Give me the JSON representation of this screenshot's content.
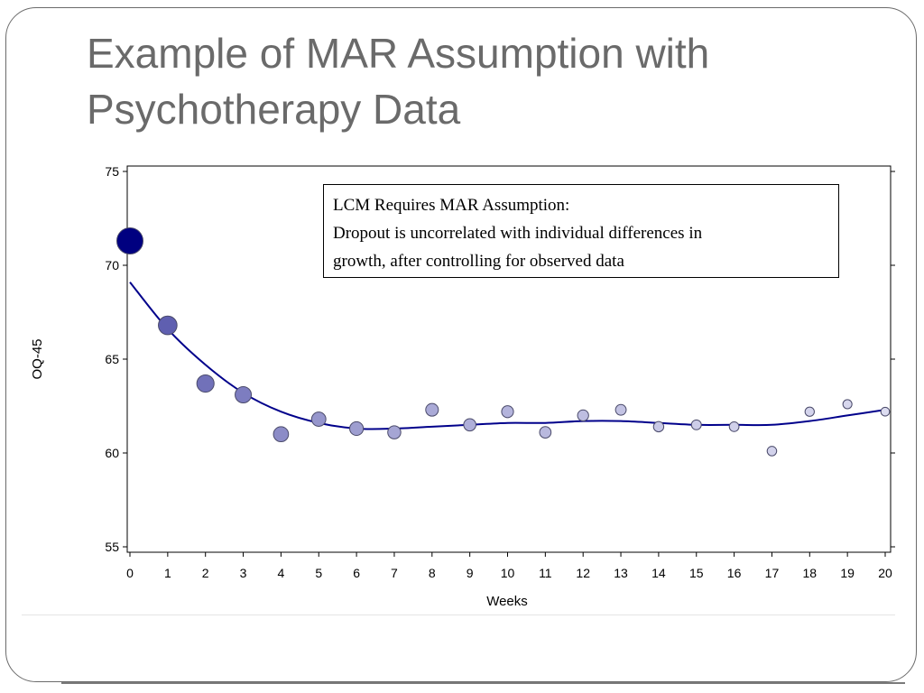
{
  "slide": {
    "title_line1": "Example of MAR Assumption with",
    "title_line2": "Psychotherapy Data"
  },
  "annotation": {
    "line1": "LCM Requires MAR Assumption:",
    "line2": "Dropout is uncorrelated with individual differences in",
    "line3": "growth, after controlling for observed data"
  },
  "chart_data": {
    "type": "scatter",
    "xlabel": "Weeks",
    "ylabel": "OQ-45",
    "xlim": [
      0,
      20
    ],
    "ylim": [
      55,
      75
    ],
    "xticks": [
      "0",
      "1",
      "2",
      "3",
      "4",
      "5",
      "6",
      "7",
      "8",
      "9",
      "10",
      "11",
      "12",
      "13",
      "14",
      "15",
      "16",
      "17",
      "18",
      "19",
      "20"
    ],
    "yticks": [
      "55",
      "60",
      "65",
      "70",
      "75"
    ],
    "grid": false,
    "series": [
      {
        "kind": "points",
        "x": [
          0,
          1,
          2,
          3,
          4,
          5,
          6,
          7,
          8,
          9,
          10,
          11,
          12,
          13,
          14,
          15,
          16,
          17,
          18,
          19,
          20
        ],
        "y": [
          71.3,
          66.8,
          63.7,
          63.1,
          61.0,
          61.8,
          61.3,
          61.1,
          62.3,
          61.5,
          62.2,
          61.1,
          62.0,
          62.3,
          61.4,
          61.5,
          61.4,
          60.1,
          62.2,
          62.6,
          62.2
        ],
        "size_rank": [
          1.0,
          0.62,
          0.55,
          0.5,
          0.44,
          0.4,
          0.37,
          0.34,
          0.32,
          0.3,
          0.28,
          0.26,
          0.24,
          0.22,
          0.2,
          0.18,
          0.17,
          0.16,
          0.15,
          0.14,
          0.12
        ],
        "color_dark": "#000080",
        "color_light": "#dcdcf0"
      },
      {
        "kind": "fitted-curve",
        "x": [
          0,
          1,
          2,
          3,
          4,
          5,
          6,
          7,
          8,
          9,
          10,
          11,
          12,
          13,
          14,
          15,
          16,
          17,
          18,
          19,
          20
        ],
        "y": [
          69.1,
          66.6,
          64.7,
          63.2,
          62.2,
          61.6,
          61.3,
          61.3,
          61.4,
          61.5,
          61.6,
          61.6,
          61.7,
          61.7,
          61.6,
          61.5,
          61.5,
          61.5,
          61.7,
          62.0,
          62.3
        ],
        "color": "#00008b"
      }
    ]
  }
}
